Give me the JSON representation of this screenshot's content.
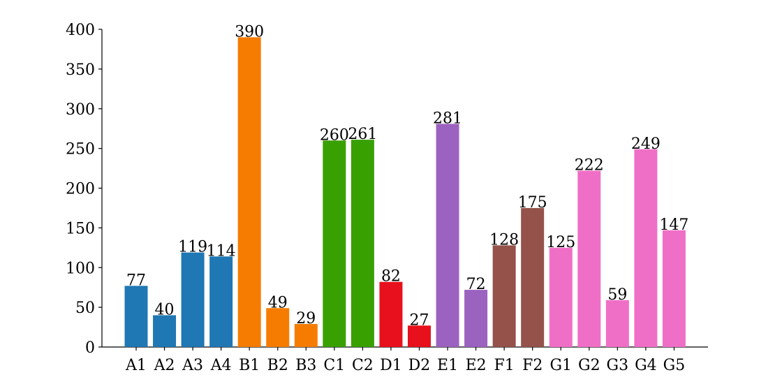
{
  "chart_data": {
    "type": "bar",
    "title": "",
    "xlabel": "",
    "ylabel": "",
    "ylim": [
      0,
      400
    ],
    "yticks": [
      0,
      50,
      100,
      150,
      200,
      250,
      300,
      350,
      400
    ],
    "grid": false,
    "legend": "none",
    "categories": [
      "A1",
      "A2",
      "A3",
      "A4",
      "B1",
      "B2",
      "B3",
      "C1",
      "C2",
      "D1",
      "D2",
      "E1",
      "E2",
      "F1",
      "F2",
      "G1",
      "G2",
      "G3",
      "G4",
      "G5"
    ],
    "values": [
      77,
      40,
      119,
      114,
      390,
      49,
      29,
      260,
      261,
      82,
      27,
      281,
      72,
      128,
      175,
      125,
      222,
      59,
      249,
      147
    ],
    "groups": [
      "A",
      "A",
      "A",
      "A",
      "B",
      "B",
      "B",
      "C",
      "C",
      "D",
      "D",
      "E",
      "E",
      "F",
      "F",
      "G",
      "G",
      "G",
      "G",
      "G"
    ],
    "group_colors": {
      "A": "#1f77b4",
      "B": "#f57c00",
      "C": "#38a000",
      "D": "#e8101c",
      "E": "#9c62c0",
      "F": "#94524a",
      "G": "#f06fc6"
    }
  }
}
